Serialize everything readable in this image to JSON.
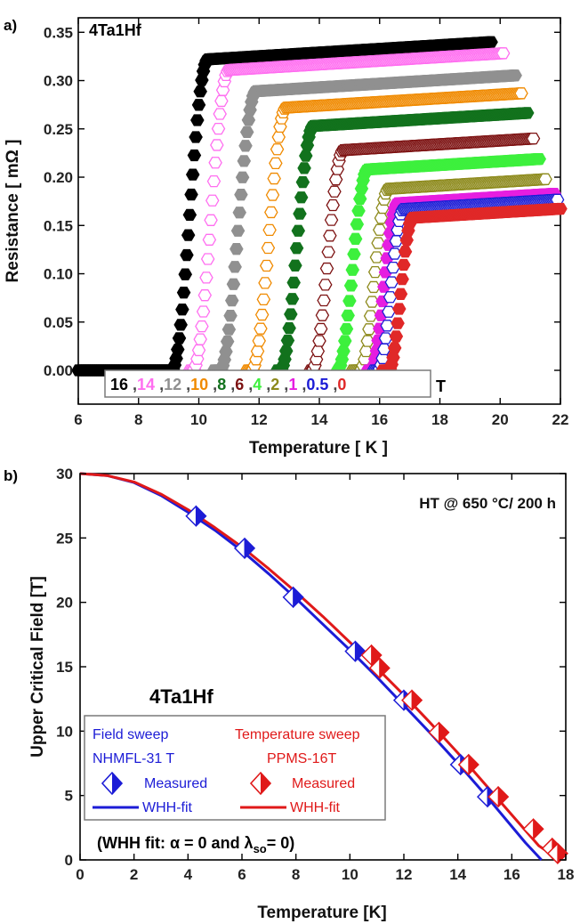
{
  "colors": {
    "field_sweep": "#1c1cd6",
    "temperature_sweep": "#e01919",
    "legend_border": "#7a7a7a"
  },
  "chart_data": [
    {
      "type": "scatter",
      "panel_label": "a)",
      "sample_label": "4Ta1Hf",
      "xlabel": "Temperature [ K ]",
      "ylabel": "Resistance [ mΩ ]",
      "xlim": [
        6,
        22
      ],
      "ylim": [
        -0.035,
        0.365
      ],
      "xticks": [
        "6",
        "8",
        "10",
        "12",
        "14",
        "16",
        "18",
        "20",
        "22"
      ],
      "yticks": [
        "0.00",
        "0.05",
        "0.10",
        "0.15",
        "0.20",
        "0.25",
        "0.30",
        "0.35"
      ],
      "legend_unit": "T",
      "legend_placement": "bottom-center",
      "series": [
        {
          "name": "16",
          "color": "#000000",
          "t_start": 6.0,
          "tc_onset": 10.3,
          "tc_width": 1.2,
          "t_end": 19.7,
          "r_normal": 0.322,
          "r_slope": 0.0019
        },
        {
          "name": "14",
          "color": "#ff6ef0",
          "t_start": 9.7,
          "tc_onset": 11.0,
          "tc_width": 1.2,
          "t_end": 20.1,
          "r_normal": 0.311,
          "r_slope": 0.0019
        },
        {
          "name": "12",
          "color": "#909090",
          "t_start": 10.5,
          "tc_onset": 11.9,
          "tc_width": 1.2,
          "t_end": 20.5,
          "r_normal": 0.289,
          "r_slope": 0.0019
        },
        {
          "name": "10",
          "color": "#f08a00",
          "t_start": 11.6,
          "tc_onset": 12.9,
          "tc_width": 1.15,
          "t_end": 20.7,
          "r_normal": 0.272,
          "r_slope": 0.0019
        },
        {
          "name": "8",
          "color": "#12721d",
          "t_start": 12.6,
          "tc_onset": 13.8,
          "tc_width": 1.1,
          "t_end": 20.9,
          "r_normal": 0.253,
          "r_slope": 0.0019
        },
        {
          "name": "6",
          "color": "#7d1212",
          "t_start": 13.7,
          "tc_onset": 14.8,
          "tc_width": 1.05,
          "t_end": 21.1,
          "r_normal": 0.228,
          "r_slope": 0.0019
        },
        {
          "name": "4",
          "color": "#3df03d",
          "t_start": 14.6,
          "tc_onset": 15.6,
          "tc_width": 1.0,
          "t_end": 21.3,
          "r_normal": 0.208,
          "r_slope": 0.0019
        },
        {
          "name": "2",
          "color": "#8d8a1c",
          "t_start": 15.1,
          "tc_onset": 16.3,
          "tc_width": 0.95,
          "t_end": 21.5,
          "r_normal": 0.188,
          "r_slope": 0.0019
        },
        {
          "name": "1",
          "color": "#e61ee0",
          "t_start": 15.6,
          "tc_onset": 16.6,
          "tc_width": 0.9,
          "t_end": 21.8,
          "r_normal": 0.173,
          "r_slope": 0.0019
        },
        {
          "name": "0.5",
          "color": "#1c1cd6",
          "t_start": 15.8,
          "tc_onset": 16.8,
          "tc_width": 0.85,
          "t_end": 21.9,
          "r_normal": 0.167,
          "r_slope": 0.0019
        },
        {
          "name": "0",
          "color": "#e02828",
          "t_start": 16.1,
          "tc_onset": 17.1,
          "tc_width": 0.8,
          "t_end": 22.0,
          "r_normal": 0.158,
          "r_slope": 0.0019
        }
      ]
    },
    {
      "type": "scatter",
      "panel_label": "b)",
      "sample_label": "4Ta1Hf",
      "annotation": "HT @ 650 °C/ 200 h",
      "xlabel": "Temperature [K]",
      "ylabel": "Upper Critical Field [T]",
      "xlim": [
        0,
        18
      ],
      "ylim": [
        0,
        30
      ],
      "xticks": [
        "0",
        "2",
        "4",
        "6",
        "8",
        "10",
        "12",
        "14",
        "16",
        "18"
      ],
      "yticks": [
        "0",
        "5",
        "10",
        "15",
        "20",
        "25",
        "30"
      ],
      "legend": {
        "field_sweep_title": "Field sweep",
        "field_sweep_instrument": "NHMFL-31 T",
        "temperature_sweep_title": "Temperature sweep",
        "temperature_sweep_instrument": "PPMS-16T",
        "measured_label_left": "Measured",
        "measured_label_right": "Measured",
        "fit_label_left": "WHH-fit",
        "fit_label_right": "WHH-fit"
      },
      "fit_note_prefix": "(WHH fit: ",
      "fit_note_alpha": "α = 0 and λ",
      "fit_note_sub": "so",
      "fit_note_suffix": "= 0)",
      "series": [
        {
          "name": "Field sweep measured",
          "color": "#1c1cd6",
          "x": [
            4.3,
            6.1,
            7.9,
            10.2,
            12.0,
            14.1,
            15.1
          ],
          "y": [
            26.7,
            24.2,
            20.4,
            16.2,
            12.4,
            7.4,
            4.9
          ]
        },
        {
          "name": "Temperature sweep measured",
          "color": "#e01919",
          "x": [
            10.8,
            11.1,
            12.3,
            13.3,
            14.4,
            15.5,
            16.8,
            17.5,
            17.7
          ],
          "y": [
            15.9,
            14.9,
            12.4,
            9.9,
            7.4,
            4.9,
            2.4,
            0.9,
            0.5
          ]
        },
        {
          "name": "Field sweep WHH fit",
          "color": "#1c1cd6",
          "x": [
            0,
            1,
            2,
            3,
            4,
            5,
            6,
            7,
            8,
            9,
            10,
            11,
            12,
            13,
            14,
            15,
            16,
            16.5,
            17.1
          ],
          "y": [
            30.0,
            29.85,
            29.3,
            28.3,
            27.0,
            25.6,
            24.0,
            22.2,
            20.3,
            18.3,
            16.3,
            14.2,
            12.0,
            9.8,
            7.5,
            5.1,
            2.6,
            1.35,
            0.0
          ]
        },
        {
          "name": "Temperature sweep WHH fit",
          "color": "#e01919",
          "x": [
            0,
            1,
            2,
            3,
            4,
            5,
            6,
            7,
            8,
            9,
            10,
            11,
            12,
            13,
            14,
            15,
            16,
            17,
            17.5,
            17.8
          ],
          "y": [
            30.0,
            29.85,
            29.35,
            28.4,
            27.2,
            25.8,
            24.3,
            22.6,
            20.8,
            18.9,
            16.9,
            14.9,
            12.8,
            10.6,
            8.3,
            5.9,
            3.5,
            1.1,
            0.4,
            0.0
          ]
        }
      ]
    }
  ]
}
